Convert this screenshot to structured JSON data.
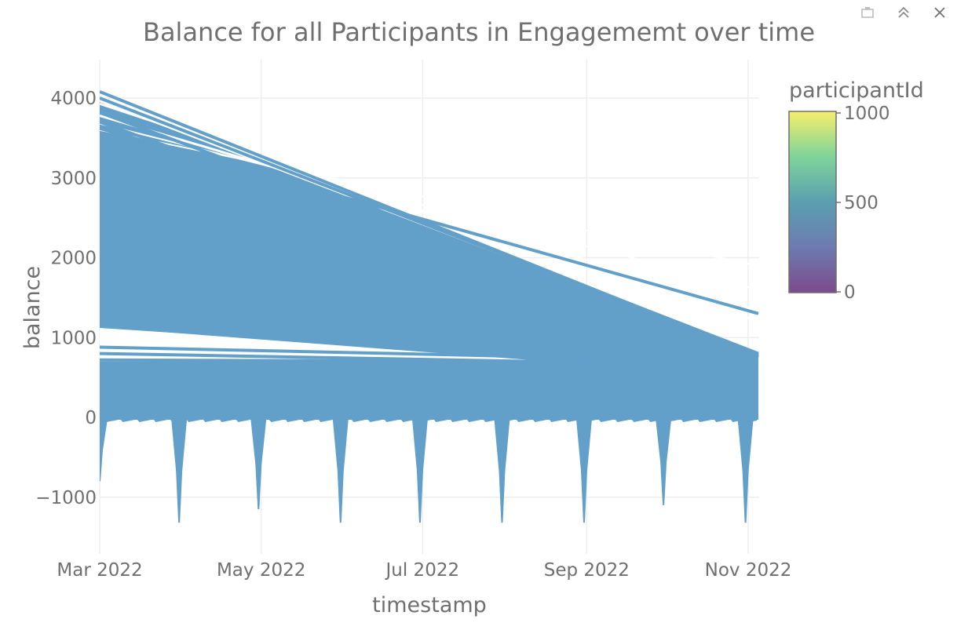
{
  "modebar": {
    "buttons": [
      {
        "name": "download-plot-button",
        "icon": "camera-icon"
      },
      {
        "name": "collapse-button",
        "icon": "double-chevron-up-icon"
      },
      {
        "name": "close-button",
        "icon": "close-icon"
      }
    ]
  },
  "colors": {
    "line": "#62A0CA",
    "grid": "#eeeeee",
    "text": "#6f6f6f",
    "colorscale": [
      "#440154",
      "#3b528b",
      "#21918c",
      "#5ec962",
      "#fde725"
    ]
  },
  "chart_data": {
    "type": "line",
    "title": "Balance for all Participants in Engagememt over time",
    "xlabel": "timestamp",
    "ylabel": "balance",
    "x_tick_labels": [
      "Mar 2022",
      "May 2022",
      "Jul 2022",
      "Sep 2022",
      "Nov 2022"
    ],
    "x_tick_dates": [
      "2022-03-01",
      "2022-05-01",
      "2022-07-01",
      "2022-09-01",
      "2022-11-01"
    ],
    "xlim": [
      "2022-03-01",
      "2022-11-02"
    ],
    "y_ticks": [
      4000,
      3000,
      2000,
      1000,
      0,
      -1000
    ],
    "y_tick_labels": [
      "4000",
      "3000",
      "2000",
      "1000",
      "0",
      "−1000"
    ],
    "ylim": [
      -1700,
      4150
    ],
    "grid": true,
    "dense_band": {
      "upper_start": 3950,
      "upper_end": 800,
      "lower": 0
    },
    "cross_lines": [
      {
        "y0": 4080,
        "y1": 780
      },
      {
        "y0": 4000,
        "y1": 800
      },
      {
        "y0": 3820,
        "y1": 760
      },
      {
        "y0": 3700,
        "y1": 750
      },
      {
        "y0": 3620,
        "y1": 1300
      },
      {
        "y0": 1140,
        "y1": 600
      },
      {
        "y0": 880,
        "y1": 700
      },
      {
        "y0": 800,
        "y1": 650
      },
      {
        "y0": 720,
        "y1": 690
      }
    ],
    "dips": [
      {
        "date": "2022-03-01",
        "min": -800
      },
      {
        "date": "2022-03-31",
        "min": -1320
      },
      {
        "date": "2022-04-30",
        "min": -1150
      },
      {
        "date": "2022-05-31",
        "min": -1320
      },
      {
        "date": "2022-06-30",
        "min": -1320
      },
      {
        "date": "2022-07-31",
        "min": -1320
      },
      {
        "date": "2022-08-31",
        "min": -1320
      },
      {
        "date": "2022-09-30",
        "min": -1100
      },
      {
        "date": "2022-10-31",
        "min": -1320
      }
    ],
    "legend": {
      "title": "participantId",
      "ticks": [
        1000,
        500,
        0
      ],
      "tick_labels": [
        "1000",
        "500",
        "0"
      ],
      "range": [
        0,
        1000
      ],
      "placement": "right"
    }
  }
}
